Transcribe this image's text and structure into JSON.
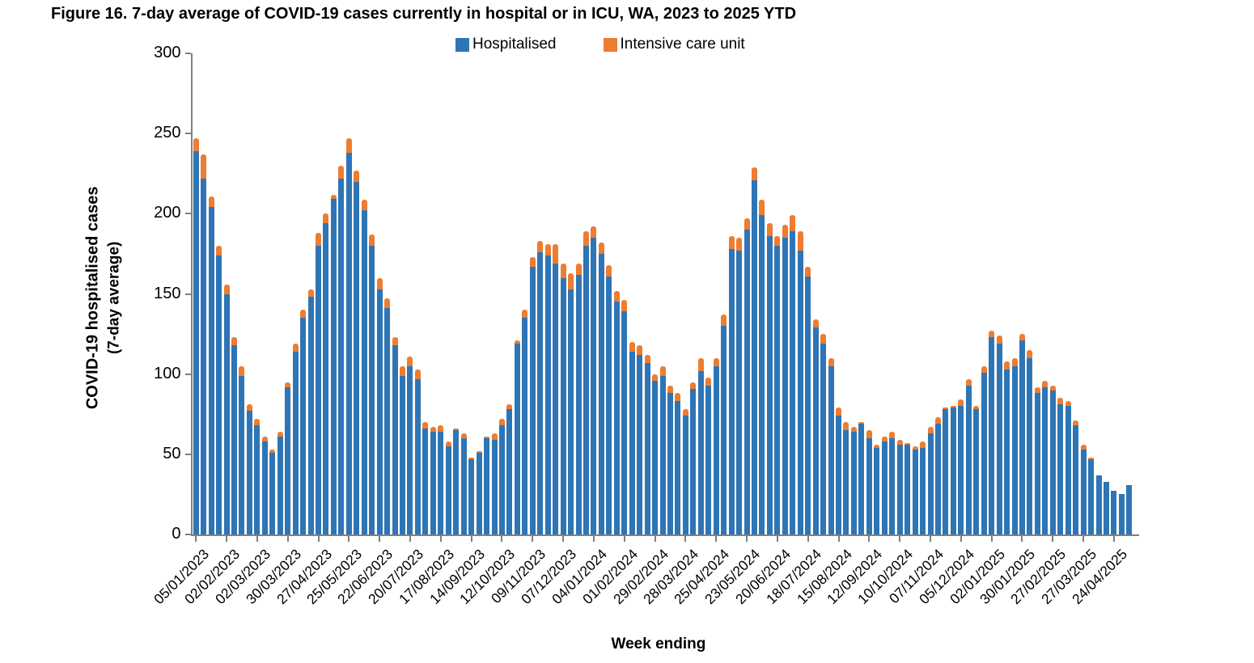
{
  "title": "Figure 16. 7-day average of COVID-19 cases currently in hospital or in ICU, WA, 2023 to 2025 YTD",
  "axes": {
    "y_title_line1": "COVID-19 hospitalised  cases",
    "y_title_line2": "(7-day average)",
    "x_title": "Week ending",
    "y_ticks": [
      0,
      50,
      100,
      150,
      200,
      250,
      300
    ]
  },
  "chart_data": {
    "type": "bar",
    "stacked": true,
    "legend_position": "top-center",
    "grid": false,
    "ylim": [
      0,
      300
    ],
    "x_tick_every": 4,
    "x": [
      "05/01/2023",
      "12/01/2023",
      "19/01/2023",
      "26/01/2023",
      "02/02/2023",
      "09/02/2023",
      "16/02/2023",
      "23/02/2023",
      "02/03/2023",
      "09/03/2023",
      "16/03/2023",
      "23/03/2023",
      "30/03/2023",
      "06/04/2023",
      "13/04/2023",
      "20/04/2023",
      "27/04/2023",
      "04/05/2023",
      "11/05/2023",
      "18/05/2023",
      "25/05/2023",
      "01/06/2023",
      "08/06/2023",
      "15/06/2023",
      "22/06/2023",
      "29/06/2023",
      "06/07/2023",
      "13/07/2023",
      "20/07/2023",
      "27/07/2023",
      "03/08/2023",
      "10/08/2023",
      "17/08/2023",
      "24/08/2023",
      "31/08/2023",
      "07/09/2023",
      "14/09/2023",
      "21/09/2023",
      "28/09/2023",
      "05/10/2023",
      "12/10/2023",
      "19/10/2023",
      "26/10/2023",
      "02/11/2023",
      "09/11/2023",
      "16/11/2023",
      "23/11/2023",
      "30/11/2023",
      "07/12/2023",
      "14/12/2023",
      "21/12/2023",
      "28/12/2023",
      "04/01/2024",
      "11/01/2024",
      "18/01/2024",
      "25/01/2024",
      "01/02/2024",
      "08/02/2024",
      "15/02/2024",
      "22/02/2024",
      "29/02/2024",
      "07/03/2024",
      "14/03/2024",
      "21/03/2024",
      "28/03/2024",
      "04/04/2024",
      "11/04/2024",
      "18/04/2024",
      "25/04/2024",
      "02/05/2024",
      "09/05/2024",
      "16/05/2024",
      "23/05/2024",
      "30/05/2024",
      "06/06/2024",
      "13/06/2024",
      "20/06/2024",
      "27/06/2024",
      "04/07/2024",
      "11/07/2024",
      "18/07/2024",
      "25/07/2024",
      "01/08/2024",
      "08/08/2024",
      "15/08/2024",
      "22/08/2024",
      "29/08/2024",
      "05/09/2024",
      "12/09/2024",
      "19/09/2024",
      "26/09/2024",
      "03/10/2024",
      "10/10/2024",
      "17/10/2024",
      "24/10/2024",
      "31/10/2024",
      "07/11/2024",
      "14/11/2024",
      "21/11/2024",
      "28/11/2024",
      "05/12/2024",
      "12/12/2024",
      "19/12/2024",
      "26/12/2024",
      "02/01/2025",
      "09/01/2025",
      "16/01/2025",
      "23/01/2025",
      "30/01/2025",
      "06/02/2025",
      "13/02/2025",
      "20/02/2025",
      "27/02/2025",
      "06/03/2025",
      "13/03/2025",
      "20/03/2025",
      "27/03/2025",
      "03/04/2025",
      "10/04/2025",
      "17/04/2025",
      "24/04/2025",
      "01/05/2025",
      "08/05/2025"
    ],
    "x_tick_labels": [
      "05/01/2023",
      "02/02/2023",
      "02/03/2023",
      "30/03/2023",
      "27/04/2023",
      "25/05/2023",
      "22/06/2023",
      "20/07/2023",
      "17/08/2023",
      "14/09/2023",
      "12/10/2023",
      "09/11/2023",
      "07/12/2023",
      "04/01/2024",
      "01/02/2024",
      "29/02/2024",
      "28/03/2024",
      "25/04/2024",
      "23/05/2024",
      "20/06/2024",
      "18/07/2024",
      "15/08/2024",
      "12/09/2024",
      "10/10/2024",
      "07/11/2024",
      "05/12/2024",
      "02/01/2025",
      "30/01/2025",
      "27/02/2025",
      "27/03/2025",
      "24/04/2025"
    ],
    "series": [
      {
        "name": "Hospitalised",
        "color": "#2E75B6",
        "values": [
          239,
          222,
          204,
          174,
          150,
          118,
          99,
          77,
          68,
          58,
          51,
          61,
          92,
          114,
          135,
          148,
          180,
          194,
          209,
          222,
          238,
          220,
          202,
          180,
          153,
          141,
          118,
          99,
          105,
          97,
          66,
          64,
          64,
          55,
          65,
          60,
          47,
          51,
          60,
          59,
          68,
          78,
          119,
          135,
          167,
          176,
          174,
          169,
          160,
          153,
          162,
          180,
          185,
          175,
          161,
          145,
          139,
          114,
          112,
          107,
          96,
          99,
          88,
          83,
          74,
          91,
          102,
          93,
          105,
          130,
          178,
          177,
          190,
          221,
          199,
          186,
          180,
          185,
          189,
          177,
          161,
          129,
          119,
          105,
          74,
          65,
          64,
          69,
          60,
          54,
          58,
          60,
          56,
          56,
          53,
          54,
          63,
          69,
          78,
          79,
          80,
          93,
          78,
          101,
          123,
          119,
          103,
          105,
          121,
          110,
          88,
          92,
          90,
          81,
          80,
          68,
          53,
          47,
          37,
          33,
          27,
          25,
          31
        ]
      },
      {
        "name": "Intensive care unit",
        "color": "#ED7D31",
        "values": [
          8,
          15,
          7,
          6,
          6,
          5,
          6,
          4,
          4,
          3,
          2,
          3,
          3,
          5,
          5,
          5,
          8,
          6,
          3,
          8,
          9,
          7,
          7,
          7,
          7,
          6,
          5,
          6,
          6,
          6,
          4,
          3,
          4,
          3,
          1,
          3,
          1,
          1,
          1,
          4,
          4,
          3,
          2,
          5,
          6,
          7,
          7,
          12,
          9,
          10,
          7,
          9,
          7,
          7,
          7,
          7,
          7,
          6,
          6,
          5,
          4,
          6,
          5,
          5,
          4,
          4,
          8,
          5,
          5,
          7,
          8,
          8,
          7,
          8,
          10,
          8,
          6,
          8,
          10,
          12,
          6,
          5,
          6,
          5,
          5,
          5,
          3,
          1,
          5,
          2,
          3,
          4,
          3,
          1,
          2,
          4,
          4,
          4,
          1,
          1,
          4,
          4,
          2,
          4,
          4,
          5,
          5,
          5,
          4,
          5,
          4,
          4,
          3,
          4,
          3,
          3,
          3,
          1,
          0,
          0,
          0,
          0,
          0
        ]
      }
    ]
  }
}
